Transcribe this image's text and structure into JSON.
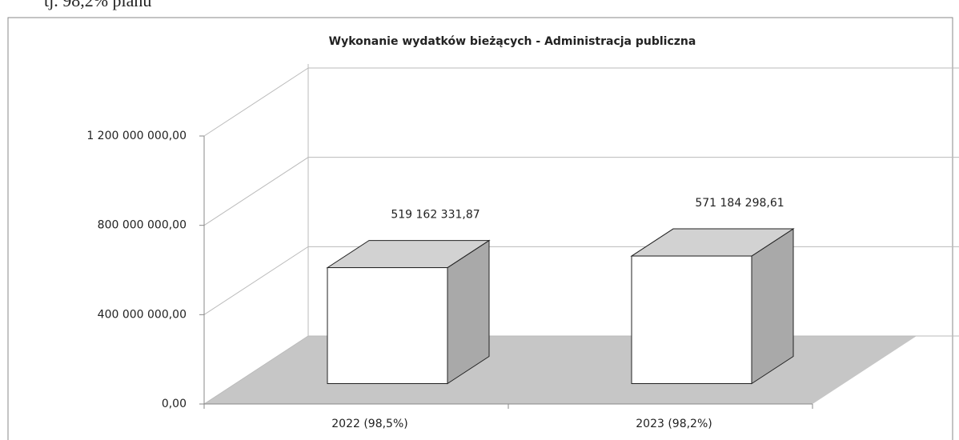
{
  "header_text": "tj. 98,2% planu",
  "chart_data": {
    "type": "bar3d",
    "title": "Wykonanie wydatków bieżących - Administracja publiczna",
    "categories": [
      "2022 (98,5%)",
      "2023 (98,2%)"
    ],
    "values": [
      519162331.87,
      571184298.61
    ],
    "value_labels": [
      "519 162 331,87",
      "571 184 298,61"
    ],
    "color": "#ffffff",
    "ylim": [
      0,
      1200000000
    ],
    "yticks": [
      {
        "value": 0,
        "label": "0,00"
      },
      {
        "value": 400000000,
        "label": "400 000 000,00"
      },
      {
        "value": 800000000,
        "label": "800 000 000,00"
      },
      {
        "value": 1200000000,
        "label": "1 200 000 000,00"
      }
    ],
    "grid": true
  }
}
